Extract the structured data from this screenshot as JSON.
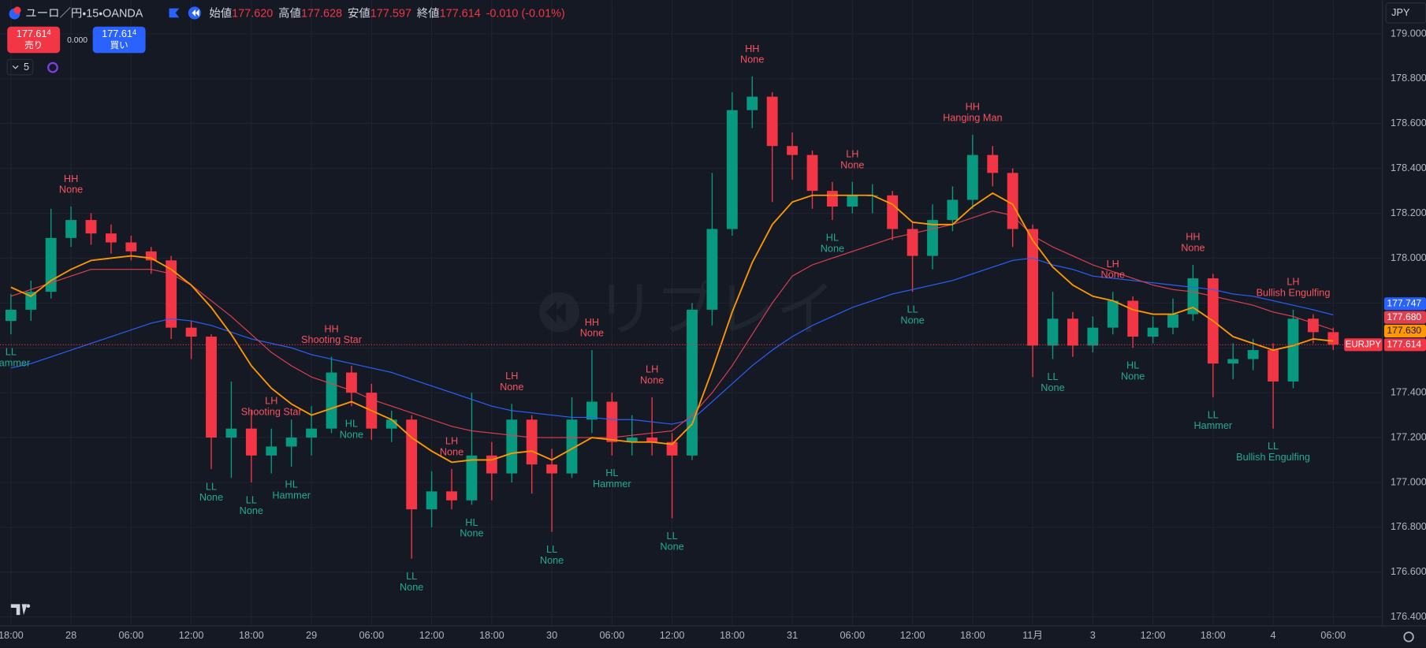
{
  "header": {
    "symbol": "ユーロ／円・15・OANDA",
    "fields": [
      {
        "label": "始値",
        "value": "177.620"
      },
      {
        "label": "高値",
        "value": "177.628"
      },
      {
        "label": "安値",
        "value": "177.597"
      },
      {
        "label": "終値",
        "value": "177.614"
      }
    ],
    "change": "-0.010 (-0.01%)",
    "sell": {
      "price": "177.61",
      "pip": "4",
      "label": "売り"
    },
    "spread": "0.000",
    "buy": {
      "price": "177.61",
      "pip": "4",
      "label": "買い"
    },
    "indicators": "5",
    "currency": "JPY",
    "watermark": "リプレイ"
  },
  "chart_data": {
    "type": "candlestick",
    "symbol": "EURJPY",
    "up_color": "#089981",
    "down_color": "#f23645",
    "categories": [
      "18:00",
      null,
      null,
      "28",
      null,
      null,
      "06:00",
      null,
      null,
      "12:00",
      null,
      null,
      "18:00",
      null,
      null,
      "29",
      null,
      null,
      "06:00",
      null,
      null,
      "12:00",
      null,
      null,
      "18:00",
      null,
      null,
      "30",
      null,
      null,
      "06:00",
      null,
      null,
      "12:00",
      null,
      null,
      "18:00",
      null,
      null,
      "31",
      null,
      null,
      "06:00",
      null,
      null,
      "12:00",
      null,
      null,
      "18:00",
      null,
      null,
      "11月",
      null,
      null,
      "3",
      null,
      null,
      "12:00",
      null,
      null,
      "18:00",
      null,
      null,
      "4",
      null,
      null,
      "06:00"
    ],
    "ohlc": {
      "open": [
        177.72,
        177.77,
        177.85,
        178.09,
        178.17,
        178.11,
        178.07,
        178.03,
        177.99,
        177.69,
        177.65,
        177.2,
        177.24,
        177.12,
        177.16,
        177.2,
        177.24,
        177.49,
        177.4,
        177.24,
        177.28,
        176.88,
        176.96,
        176.92,
        177.12,
        177.04,
        177.28,
        177.08,
        177.04,
        177.28,
        177.36,
        177.18,
        177.2,
        177.18,
        177.12,
        177.77,
        178.13,
        178.66,
        178.72,
        178.5,
        178.46,
        178.3,
        178.23,
        178.28,
        178.28,
        178.13,
        178.01,
        178.17,
        178.26,
        178.46,
        178.38,
        178.13,
        177.61,
        177.73,
        177.61,
        177.69,
        177.81,
        177.65,
        177.69,
        177.75,
        177.91,
        177.53,
        177.55,
        177.59,
        177.45,
        177.73,
        177.67
      ],
      "high": [
        177.84,
        177.9,
        178.22,
        178.23,
        178.2,
        178.15,
        178.1,
        178.05,
        178.01,
        177.72,
        177.66,
        177.45,
        177.32,
        177.24,
        177.28,
        177.34,
        177.56,
        177.52,
        177.44,
        177.32,
        177.3,
        177.05,
        177.06,
        177.4,
        177.18,
        177.35,
        177.3,
        177.15,
        177.38,
        177.59,
        177.4,
        177.3,
        177.38,
        177.22,
        177.8,
        178.38,
        178.74,
        178.81,
        178.74,
        178.56,
        178.48,
        178.34,
        178.34,
        178.33,
        178.3,
        178.16,
        178.24,
        178.32,
        178.55,
        178.5,
        178.4,
        178.15,
        177.85,
        177.76,
        177.74,
        177.85,
        177.83,
        177.74,
        177.82,
        177.97,
        177.93,
        177.62,
        177.64,
        177.62,
        177.77,
        177.75,
        177.69
      ],
      "low": [
        177.66,
        177.72,
        177.82,
        178.05,
        178.06,
        178.02,
        177.99,
        177.93,
        177.64,
        177.55,
        177.06,
        177.02,
        177.0,
        177.04,
        177.07,
        177.12,
        177.22,
        177.34,
        177.19,
        177.18,
        176.66,
        176.8,
        176.88,
        176.9,
        176.92,
        177.0,
        176.95,
        176.78,
        177.02,
        177.22,
        177.12,
        177.12,
        177.12,
        176.84,
        177.1,
        177.7,
        178.1,
        178.58,
        178.25,
        178.35,
        178.22,
        178.17,
        178.2,
        178.2,
        178.08,
        177.85,
        177.95,
        178.12,
        178.22,
        178.32,
        178.05,
        177.47,
        177.55,
        177.56,
        177.58,
        177.66,
        177.6,
        177.62,
        177.66,
        177.72,
        177.38,
        177.46,
        177.5,
        177.24,
        177.42,
        177.62,
        177.59
      ],
      "close": [
        177.77,
        177.85,
        178.09,
        178.17,
        178.11,
        178.07,
        178.03,
        177.99,
        177.69,
        177.65,
        177.2,
        177.24,
        177.12,
        177.16,
        177.2,
        177.24,
        177.49,
        177.4,
        177.24,
        177.28,
        176.88,
        176.96,
        176.92,
        177.12,
        177.04,
        177.28,
        177.08,
        177.04,
        177.28,
        177.36,
        177.18,
        177.2,
        177.18,
        177.12,
        177.77,
        178.13,
        178.66,
        178.72,
        178.5,
        178.46,
        178.3,
        178.23,
        178.28,
        178.28,
        178.13,
        178.01,
        178.17,
        178.26,
        178.46,
        178.38,
        178.13,
        177.61,
        177.73,
        177.61,
        177.69,
        177.81,
        177.65,
        177.69,
        177.75,
        177.91,
        177.53,
        177.55,
        177.59,
        177.45,
        177.73,
        177.67,
        177.614
      ]
    },
    "series": [
      {
        "color": "#2962ff",
        "last_label": "177.747",
        "values": [
          177.51,
          177.53,
          177.56,
          177.59,
          177.62,
          177.65,
          177.68,
          177.71,
          177.73,
          177.72,
          177.7,
          177.67,
          177.64,
          177.62,
          177.6,
          177.57,
          177.55,
          177.53,
          177.51,
          177.49,
          177.46,
          177.43,
          177.4,
          177.37,
          177.34,
          177.32,
          177.31,
          177.3,
          177.29,
          177.29,
          177.28,
          177.28,
          177.27,
          177.26,
          177.28,
          177.36,
          177.44,
          177.52,
          177.59,
          177.65,
          177.7,
          177.74,
          177.78,
          177.81,
          177.84,
          177.86,
          177.88,
          177.9,
          177.93,
          177.96,
          177.99,
          178.0,
          177.97,
          177.95,
          177.92,
          177.91,
          177.9,
          177.89,
          177.88,
          177.87,
          177.86,
          177.84,
          177.83,
          177.81,
          177.79,
          177.77,
          177.747
        ]
      },
      {
        "color": "#e0404f",
        "last_label": "177.680",
        "values": [
          177.83,
          177.86,
          177.89,
          177.92,
          177.95,
          177.95,
          177.95,
          177.95,
          177.93,
          177.88,
          177.81,
          177.74,
          177.66,
          177.58,
          177.52,
          177.47,
          177.44,
          177.41,
          177.37,
          177.34,
          177.31,
          177.28,
          177.25,
          177.23,
          177.22,
          177.21,
          177.2,
          177.2,
          177.2,
          177.2,
          177.2,
          177.21,
          177.22,
          177.23,
          177.3,
          177.4,
          177.52,
          177.66,
          177.8,
          177.92,
          177.97,
          178.0,
          178.03,
          178.06,
          178.09,
          178.11,
          178.13,
          178.15,
          178.18,
          178.21,
          178.19,
          178.1,
          178.05,
          178.01,
          177.97,
          177.94,
          177.91,
          177.88,
          177.86,
          177.85,
          177.83,
          177.81,
          177.79,
          177.76,
          177.74,
          177.71,
          177.68
        ]
      },
      {
        "color": "#ff9800",
        "last_label": "177.630",
        "values": [
          177.87,
          177.83,
          177.9,
          177.95,
          177.99,
          178.0,
          178.01,
          178.0,
          177.95,
          177.88,
          177.78,
          177.66,
          177.52,
          177.42,
          177.35,
          177.3,
          177.33,
          177.36,
          177.32,
          177.28,
          177.2,
          177.14,
          177.09,
          177.1,
          177.1,
          177.13,
          177.14,
          177.1,
          177.15,
          177.2,
          177.19,
          177.18,
          177.18,
          177.17,
          177.26,
          177.5,
          177.76,
          177.98,
          178.15,
          178.25,
          178.28,
          178.28,
          178.28,
          178.28,
          178.24,
          178.16,
          178.15,
          178.15,
          178.23,
          178.29,
          178.24,
          178.08,
          177.96,
          177.88,
          177.83,
          177.81,
          177.77,
          177.75,
          177.75,
          177.78,
          177.72,
          177.65,
          177.62,
          177.59,
          177.61,
          177.64,
          177.63
        ]
      }
    ],
    "ylim": [
      176.36,
      179.15
    ],
    "yticks": [
      {
        "value": 176.4,
        "label": "176.400"
      },
      {
        "value": 176.6,
        "label": "176.600"
      },
      {
        "value": 176.8,
        "label": "176.800"
      },
      {
        "value": 177,
        "label": "177.000"
      },
      {
        "value": 177.2,
        "label": "177.200"
      },
      {
        "value": 177.4,
        "label": "177.400"
      },
      {
        "value": 177.6,
        "label": "177.600"
      },
      {
        "value": 177.8,
        "label": "177.800"
      },
      {
        "value": 178,
        "label": "178.000"
      },
      {
        "value": 178.2,
        "label": "178.200"
      },
      {
        "value": 178.4,
        "label": "178.400"
      },
      {
        "value": 178.6,
        "label": "178.600"
      },
      {
        "value": 178.8,
        "label": "178.800"
      },
      {
        "value": 179,
        "label": "179.000"
      }
    ],
    "grid": true,
    "annotations": [
      {
        "candle": 3,
        "side": "above",
        "lines": [
          "HH",
          "None"
        ]
      },
      {
        "candle": 0,
        "side": "below",
        "lines": [
          "LL",
          "Hammer"
        ]
      },
      {
        "candle": 10,
        "side": "below",
        "lines": [
          "LL",
          "None"
        ]
      },
      {
        "candle": 12,
        "side": "below",
        "lines": [
          "LL",
          "None"
        ]
      },
      {
        "candle": 14,
        "side": "below",
        "lines": [
          "HL",
          "Hammer"
        ]
      },
      {
        "candle": 13,
        "side": "above",
        "lines": [
          "LH",
          "Shooting Star"
        ]
      },
      {
        "candle": 16,
        "side": "above",
        "lines": [
          "HH",
          "Shooting Star"
        ]
      },
      {
        "candle": 17,
        "side": "below",
        "lines": [
          "HL",
          "None"
        ]
      },
      {
        "candle": 20,
        "side": "below",
        "lines": [
          "LL",
          "None"
        ]
      },
      {
        "candle": 22,
        "side": "above",
        "lines": [
          "LH",
          "None"
        ]
      },
      {
        "candle": 23,
        "side": "below",
        "lines": [
          "HL",
          "None"
        ]
      },
      {
        "candle": 25,
        "side": "above",
        "lines": [
          "LH",
          "None"
        ]
      },
      {
        "candle": 27,
        "side": "below",
        "lines": [
          "LL",
          "None"
        ]
      },
      {
        "candle": 29,
        "side": "above",
        "lines": [
          "HH",
          "None"
        ]
      },
      {
        "candle": 30,
        "side": "below",
        "lines": [
          "HL",
          "Hammer"
        ]
      },
      {
        "candle": 32,
        "side": "above",
        "lines": [
          "LH",
          "None"
        ]
      },
      {
        "candle": 33,
        "side": "below",
        "lines": [
          "LL",
          "None"
        ]
      },
      {
        "candle": 37,
        "side": "above",
        "lines": [
          "HH",
          "None"
        ]
      },
      {
        "candle": 42,
        "side": "above",
        "lines": [
          "LH",
          "None"
        ]
      },
      {
        "candle": 41,
        "side": "below",
        "lines": [
          "HL",
          "None"
        ]
      },
      {
        "candle": 48,
        "side": "above",
        "lines": [
          "HH",
          "Hanging Man"
        ]
      },
      {
        "candle": 45,
        "side": "below",
        "lines": [
          "LL",
          "None"
        ]
      },
      {
        "candle": 52,
        "side": "below",
        "lines": [
          "LL",
          "None"
        ]
      },
      {
        "candle": 55,
        "side": "above",
        "lines": [
          "LH",
          "None"
        ]
      },
      {
        "candle": 56,
        "side": "below",
        "lines": [
          "HL",
          "None"
        ]
      },
      {
        "candle": 59,
        "side": "above",
        "lines": [
          "HH",
          "None"
        ]
      },
      {
        "candle": 60,
        "side": "below",
        "lines": [
          "LL",
          "Hammer"
        ]
      },
      {
        "candle": 64,
        "side": "above",
        "lines": [
          "LH",
          "Bullish Engulfing"
        ]
      },
      {
        "candle": 63,
        "side": "below",
        "lines": [
          "LL",
          "Bullish Engulfing"
        ]
      }
    ]
  }
}
